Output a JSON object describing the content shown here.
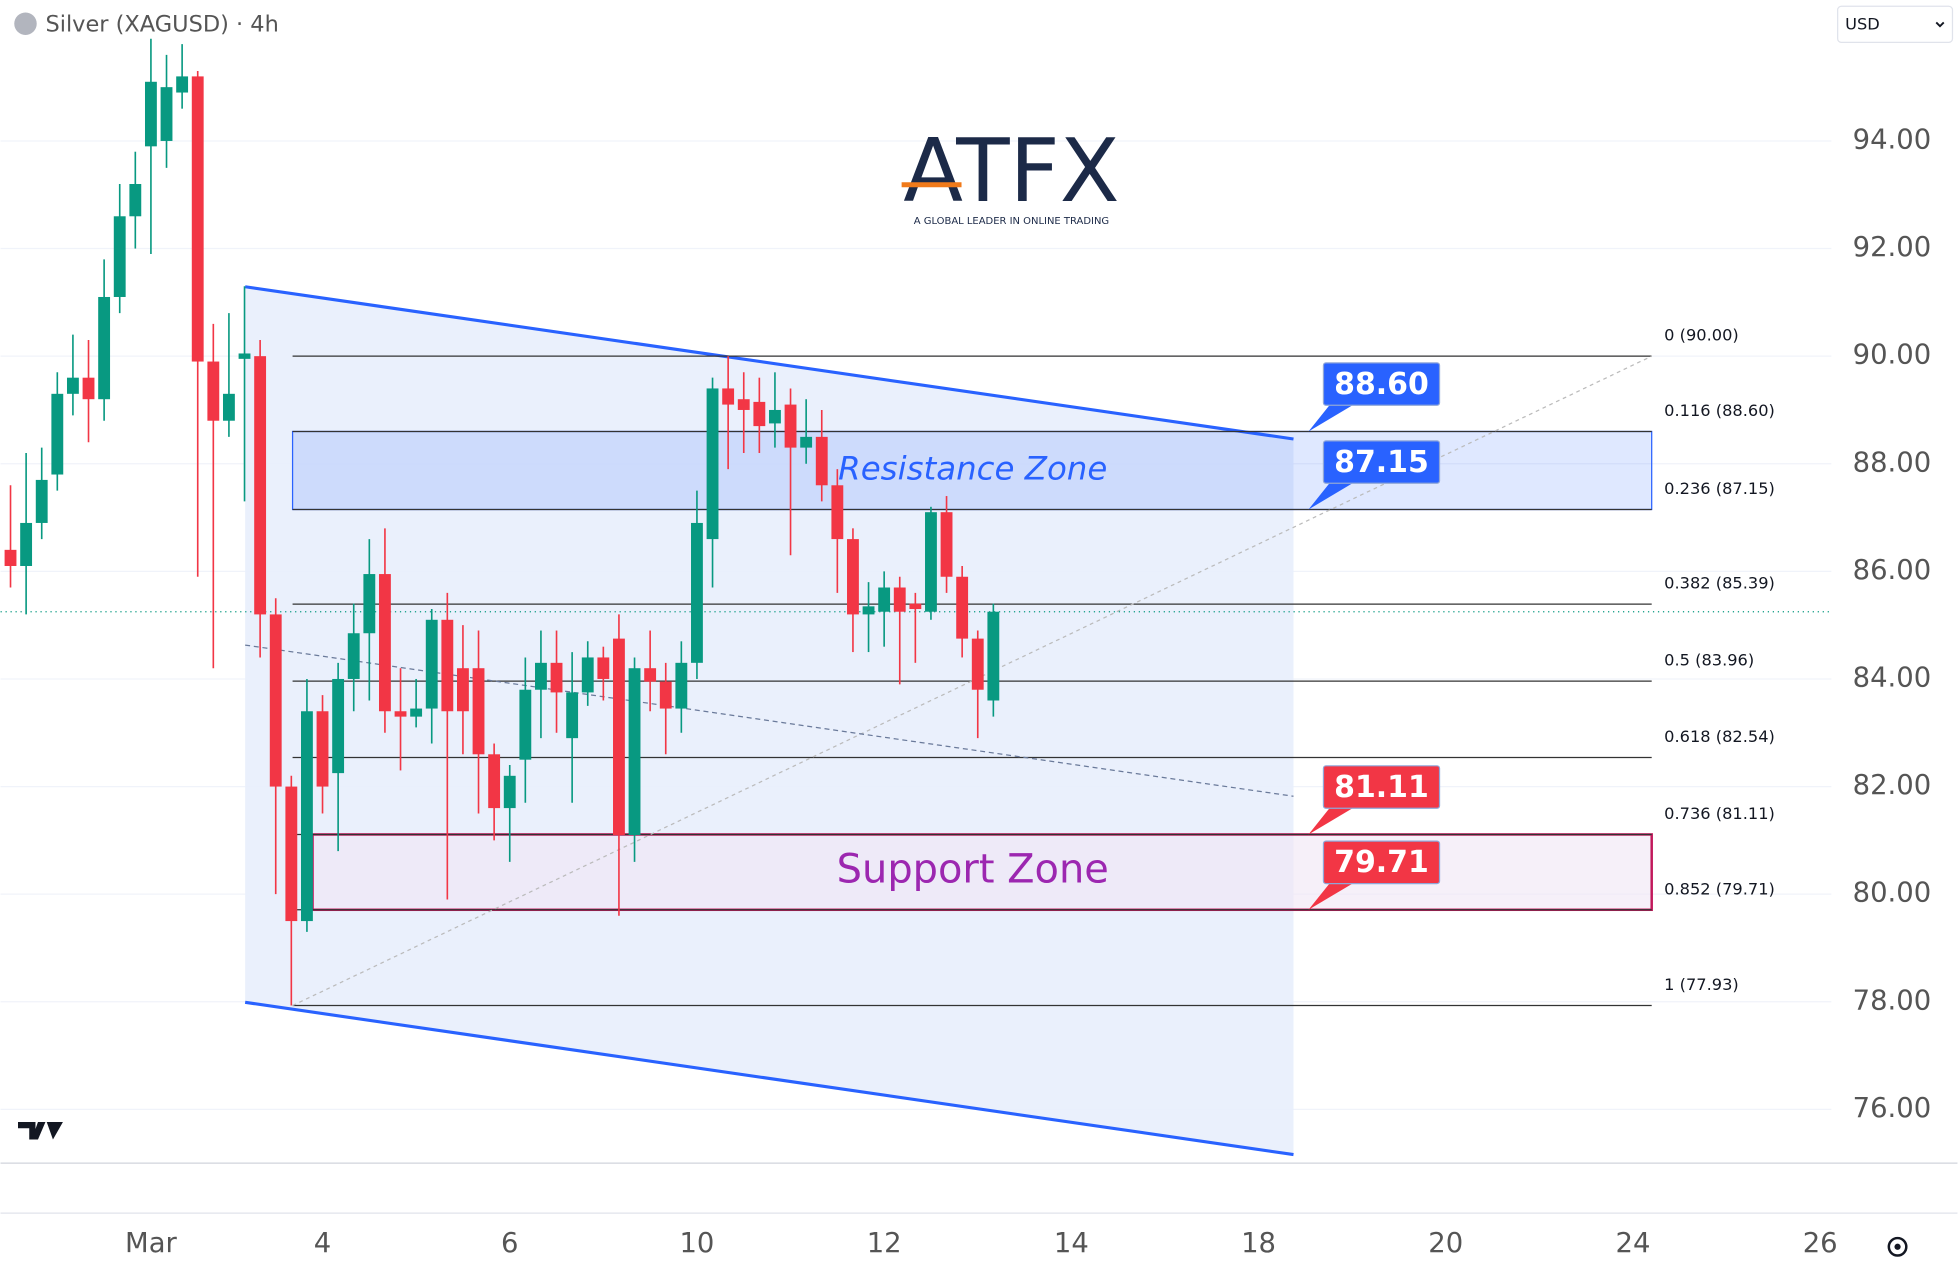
{
  "header": {
    "symbol": "Silver (XAGUSD) · 4h",
    "currency": "USD"
  },
  "logo": {
    "text": "ATFX",
    "tagline": "A GLOBAL LEADER IN ONLINE TRADING"
  },
  "chart_data": {
    "type": "candlestick",
    "up_color": "#089981",
    "down_color": "#f23645",
    "candles": {
      "open": [
        86.4,
        86.1,
        86.9,
        87.8,
        89.3,
        89.6,
        89.2,
        91.1,
        92.6,
        93.9,
        94.0,
        94.9,
        95.2,
        89.9,
        88.8,
        89.95,
        90.0,
        85.2,
        82.0,
        79.5,
        83.4,
        82.25,
        84.0,
        84.85,
        85.95,
        83.4,
        83.3,
        83.45,
        85.1,
        84.2,
        84.2,
        82.6,
        81.6,
        82.5,
        83.8,
        84.3,
        82.9,
        83.75,
        84.4,
        84.75,
        81.1,
        84.2,
        83.95,
        83.45,
        84.3,
        86.6,
        89.4,
        89.2,
        89.15,
        88.75,
        89.1,
        88.3,
        88.5,
        87.6,
        86.6,
        85.2,
        85.25,
        85.7,
        85.4,
        85.25,
        87.1,
        85.9,
        84.75,
        83.6
      ],
      "high": [
        87.6,
        88.2,
        88.3,
        89.7,
        90.4,
        90.3,
        91.8,
        93.2,
        93.8,
        95.9,
        95.6,
        95.8,
        95.3,
        90.6,
        90.8,
        91.3,
        90.3,
        85.5,
        82.2,
        84.0,
        83.7,
        84.3,
        85.4,
        86.6,
        86.8,
        84.2,
        84.0,
        85.3,
        85.6,
        85.0,
        84.9,
        82.8,
        82.4,
        84.4,
        84.9,
        84.9,
        84.5,
        84.7,
        84.6,
        85.2,
        84.4,
        84.9,
        84.3,
        84.7,
        87.5,
        89.6,
        90.0,
        89.7,
        89.6,
        89.7,
        89.4,
        89.2,
        89.0,
        87.9,
        86.8,
        85.8,
        86.0,
        85.9,
        85.6,
        87.2,
        87.4,
        86.1,
        84.9,
        85.4
      ],
      "low": [
        85.7,
        85.2,
        86.6,
        87.5,
        88.9,
        88.4,
        88.8,
        90.8,
        92.0,
        91.9,
        93.5,
        94.6,
        85.9,
        84.2,
        88.5,
        87.3,
        84.4,
        80.0,
        77.93,
        79.3,
        81.5,
        80.8,
        83.4,
        83.6,
        83.0,
        82.3,
        83.1,
        82.8,
        79.9,
        82.6,
        81.5,
        81.0,
        80.6,
        81.7,
        82.9,
        83.0,
        81.7,
        83.5,
        83.6,
        79.6,
        80.6,
        83.4,
        82.6,
        83.0,
        84.0,
        85.7,
        87.9,
        88.2,
        88.2,
        88.3,
        86.3,
        88.0,
        87.3,
        85.6,
        84.5,
        84.5,
        84.6,
        83.9,
        84.3,
        85.1,
        85.6,
        84.4,
        82.9,
        83.3
      ],
      "close": [
        86.1,
        86.9,
        87.7,
        89.3,
        89.6,
        89.2,
        91.1,
        92.6,
        93.2,
        95.1,
        95.0,
        95.2,
        89.9,
        88.8,
        89.3,
        90.05,
        85.2,
        82.0,
        79.5,
        83.4,
        82.0,
        84.0,
        84.85,
        85.95,
        83.4,
        83.3,
        83.45,
        85.1,
        83.4,
        83.4,
        82.6,
        81.6,
        82.2,
        83.8,
        84.3,
        83.75,
        83.75,
        84.4,
        84.0,
        81.1,
        84.2,
        83.95,
        83.45,
        84.3,
        86.9,
        89.4,
        89.1,
        89.0,
        88.7,
        89.0,
        88.3,
        88.5,
        87.6,
        86.6,
        85.2,
        85.35,
        85.7,
        85.25,
        85.3,
        87.1,
        85.9,
        84.75,
        83.8,
        85.25
      ]
    },
    "xlim": [
      -0.64,
      116.72
    ],
    "xticks": [
      {
        "value": 9,
        "label": "Mar"
      },
      {
        "value": 20,
        "label": "4"
      },
      {
        "value": 32,
        "label": "6"
      },
      {
        "value": 44,
        "label": "10"
      },
      {
        "value": 56,
        "label": "12"
      },
      {
        "value": 68,
        "label": "14"
      },
      {
        "value": 80,
        "label": "18"
      },
      {
        "value": 92,
        "label": "20"
      },
      {
        "value": 104,
        "label": "24"
      },
      {
        "value": 116,
        "label": "26"
      }
    ],
    "ylim": [
      75.0,
      96.62
    ],
    "yticks": [
      {
        "value": 76,
        "label": "76.00"
      },
      {
        "value": 78,
        "label": "78.00"
      },
      {
        "value": 80,
        "label": "80.00"
      },
      {
        "value": 82,
        "label": "82.00"
      },
      {
        "value": 84,
        "label": "84.00"
      },
      {
        "value": 86,
        "label": "86.00"
      },
      {
        "value": 88,
        "label": "88.00"
      },
      {
        "value": 90,
        "label": "90.00"
      },
      {
        "value": 92,
        "label": "92.00"
      },
      {
        "value": 94,
        "label": "94.00"
      }
    ],
    "grid": true,
    "channel": {
      "color": "#2962ff",
      "fill": "#e8eefc",
      "upper": {
        "x": [
          15.04,
          82.24
        ],
        "y": [
          91.29,
          88.46
        ]
      },
      "lower": {
        "x": [
          15.04,
          82.24
        ],
        "y": [
          77.99,
          75.16
        ]
      }
    },
    "trend_dashed": {
      "x": [
        15.04,
        82.24
      ],
      "y": [
        84.63,
        81.82
      ]
    },
    "fib_diagonal": {
      "x": [
        18.08,
        105.2
      ],
      "y": [
        77.93,
        90.0
      ]
    },
    "fib": {
      "x": [
        18.08,
        105.2
      ],
      "levels": [
        {
          "price": 90.0,
          "label": "0 (90.00)"
        },
        {
          "price": 88.6,
          "label": "0.116 (88.60)"
        },
        {
          "price": 87.15,
          "label": "0.236 (87.15)"
        },
        {
          "price": 85.39,
          "label": "0.382 (85.39)"
        },
        {
          "price": 83.96,
          "label": "0.5 (83.96)"
        },
        {
          "price": 82.54,
          "label": "0.618 (82.54)"
        },
        {
          "price": 81.11,
          "label": "0.736 (81.11)"
        },
        {
          "price": 79.71,
          "label": "0.852 (79.71)"
        },
        {
          "price": 77.93,
          "label": "1 (77.93)"
        }
      ]
    },
    "zones": [
      {
        "label": "Resistance Zone",
        "top": 88.6,
        "bottom": 87.15,
        "x": [
          18.08,
          105.2
        ],
        "color": "#2962ff"
      },
      {
        "label": "Support Zone",
        "top": 81.11,
        "bottom": 79.71,
        "x": [
          19.36,
          105.2
        ],
        "color": "#c2185b"
      }
    ],
    "callouts": [
      {
        "value": 88.6,
        "label": "88.60",
        "color": "#2962ff"
      },
      {
        "value": 87.15,
        "label": "87.15",
        "color": "#2962ff"
      },
      {
        "value": 81.11,
        "label": "81.11",
        "color": "#f23645"
      },
      {
        "value": 79.71,
        "label": "79.71",
        "color": "#f23645"
      }
    ]
  }
}
